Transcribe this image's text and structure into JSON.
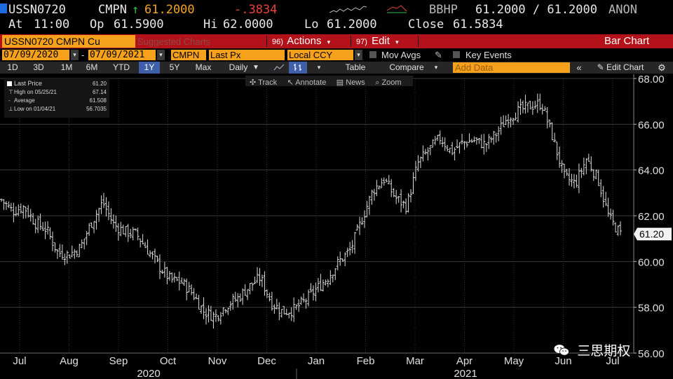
{
  "quote": {
    "ticker": "USSN0720",
    "field": "CMPN",
    "arrow": "↑",
    "last": "61.2000",
    "change": "-.3834",
    "source": "BBHP",
    "bid_ask": "61.2000 / 61.2000",
    "dealer": "ANON",
    "at_label": "At",
    "time": "11:00",
    "open_label": "Op",
    "open": "61.5900",
    "hi_label": "Hi",
    "hi": "62.0000",
    "lo_label": "Lo",
    "lo": "61.2000",
    "close_label": "Close",
    "close": "61.5834"
  },
  "toolbar": {
    "security_title": "USSN0720 CMPN Cu",
    "suggested_faint": "Suggested Charts",
    "actions_num": "96)",
    "actions_label": "Actions",
    "edit_num": "97)",
    "edit_label": "Edit",
    "view_title": "Bar Chart"
  },
  "settings": {
    "start_date": "07/09/2020",
    "end_date": "07/09/2021",
    "field_code": "CMPN",
    "field_label": "Last Px",
    "currency": "Local CCY",
    "mov_avgs": "Mov Avgs",
    "key_events": "Key Events"
  },
  "periods": [
    "1D",
    "3D",
    "1M",
    "6M",
    "YTD",
    "1Y",
    "5Y",
    "Max"
  ],
  "selected_period": "1Y",
  "frequency": "Daily",
  "table_label": "Table",
  "compare_label": "Compare",
  "add_data_placeholder": "Add Data",
  "edit_chart_label": "Edit Chart",
  "chart_tools": [
    "Track",
    "Annotate",
    "News",
    "Zoom"
  ],
  "legend": [
    {
      "label": "Last Price",
      "value": "61.20"
    },
    {
      "label": "High on 05/25/21",
      "value": "67.14"
    },
    {
      "label": "Average",
      "value": "61.508"
    },
    {
      "label": "Low on 01/04/21",
      "value": "56.7035"
    }
  ],
  "watermark": "三思期权",
  "colors": {
    "accent": "#f6a11b",
    "bar": "#b3121b",
    "up": "#2fbf4a",
    "down": "#e8423a",
    "price_line": "#e0e0e0"
  },
  "chart_data": {
    "type": "ohlc",
    "frequency": "daily",
    "x_axis_months": [
      "Jul",
      "Aug",
      "Sep",
      "Oct",
      "Nov",
      "Dec",
      "Jan",
      "Feb",
      "Mar",
      "Apr",
      "May",
      "Jun",
      "Jul"
    ],
    "x_axis_years": [
      "2020",
      "2021"
    ],
    "ylim": [
      56,
      68
    ],
    "yticks": [
      56,
      58,
      60,
      62,
      64,
      66,
      68
    ],
    "last_price_label": "61.20",
    "grid": true,
    "series": [
      {
        "name": "Last Price",
        "weekly_close_approx": [
          62.7,
          62.2,
          62.4,
          61.7,
          61.4,
          60.4,
          60.3,
          60.6,
          61.7,
          62.6,
          61.6,
          61.3,
          61.2,
          60.5,
          59.8,
          59.2,
          59.1,
          58.6,
          57.8,
          57.6,
          58.1,
          58.4,
          58.9,
          59.3,
          58.2,
          57.8,
          57.9,
          58.3,
          58.8,
          59.3,
          60.0,
          60.5,
          61.8,
          63.1,
          63.6,
          62.8,
          62.4,
          64.3,
          64.9,
          65.4,
          64.8,
          65.2,
          65.3,
          65.1,
          65.6,
          66.3,
          66.6,
          66.8,
          66.9,
          65.4,
          63.7,
          63.4,
          64.5,
          63.6,
          61.9,
          61.2
        ]
      }
    ]
  }
}
